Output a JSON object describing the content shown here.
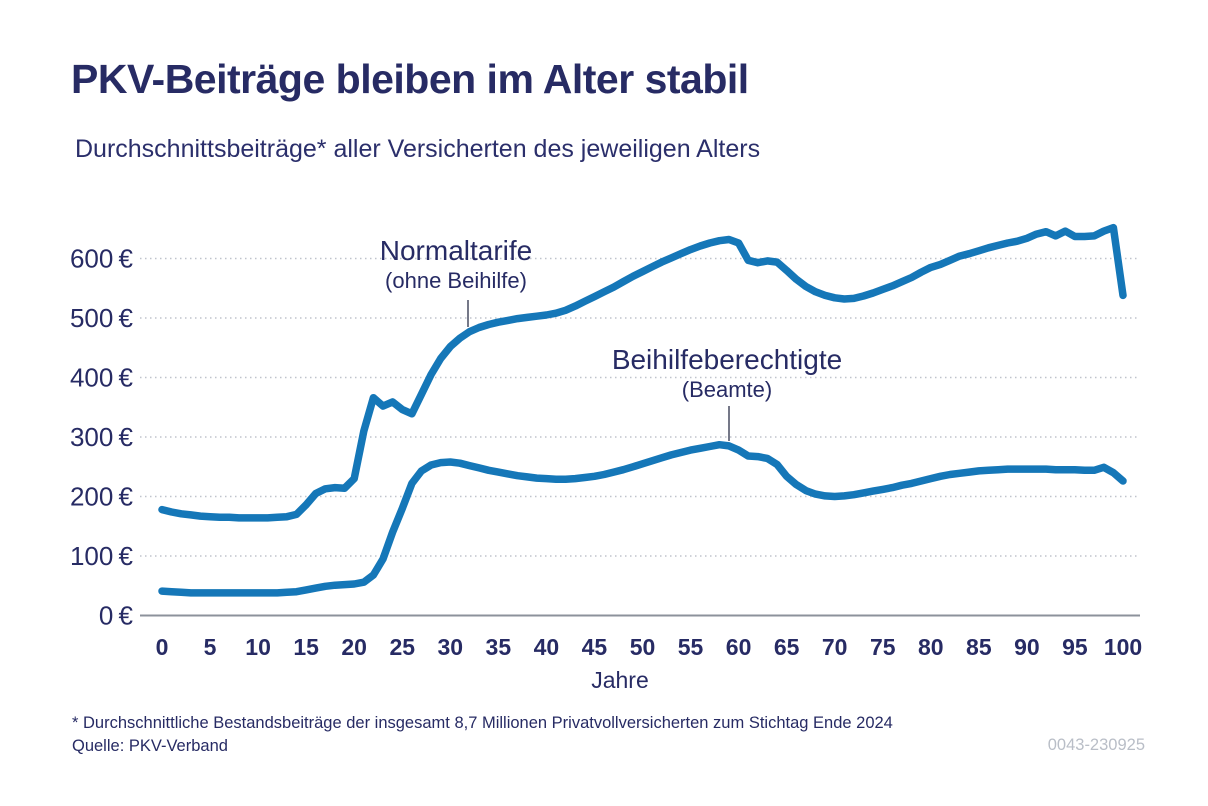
{
  "header": {
    "title": "PKV-Beiträge bleiben im Alter stabil",
    "subtitle": "Durchschnittsbeiträge* aller Versicherten des jeweiligen Alters"
  },
  "chart_data": {
    "type": "line",
    "xlabel": "Jahre",
    "x_ticks": [
      0,
      5,
      10,
      15,
      20,
      25,
      30,
      35,
      40,
      45,
      50,
      55,
      60,
      65,
      70,
      75,
      80,
      85,
      90,
      95,
      100
    ],
    "y_ticks": [
      0,
      100,
      200,
      300,
      400,
      500,
      600
    ],
    "y_tick_suffix": "€",
    "xlim": [
      0,
      100
    ],
    "ylim": [
      0,
      660
    ],
    "grid": "horizontal-dotted",
    "line_color": "#1577b8",
    "x_step": 1,
    "series": [
      {
        "name": "Normaltarife",
        "sublabel": "(ohne Beihilfe)",
        "values": [
          178,
          174,
          171,
          169,
          167,
          166,
          165,
          165,
          164,
          164,
          164,
          164,
          165,
          166,
          170,
          186,
          205,
          213,
          215,
          214,
          230,
          310,
          366,
          352,
          359,
          346,
          339,
          372,
          405,
          432,
          452,
          466,
          477,
          484,
          489,
          493,
          496,
          499,
          501,
          503,
          505,
          508,
          513,
          520,
          528,
          536,
          544,
          552,
          561,
          570,
          578,
          586,
          594,
          601,
          608,
          615,
          621,
          626,
          630,
          632,
          626,
          597,
          593,
          596,
          594,
          580,
          565,
          553,
          544,
          538,
          534,
          532,
          533,
          537,
          542,
          548,
          554,
          561,
          568,
          577,
          585,
          590,
          597,
          604,
          608,
          613,
          618,
          622,
          626,
          629,
          634,
          641,
          645,
          638,
          646,
          637,
          637,
          638,
          646,
          652,
          538
        ]
      },
      {
        "name": "Beihilfeberechtigte",
        "sublabel": "(Beamte)",
        "values": [
          41,
          40,
          39,
          38,
          38,
          38,
          38,
          38,
          38,
          38,
          38,
          38,
          38,
          39,
          40,
          43,
          46,
          49,
          51,
          52,
          53,
          56,
          68,
          95,
          140,
          180,
          222,
          243,
          253,
          257,
          258,
          256,
          252,
          248,
          244,
          241,
          238,
          235,
          233,
          231,
          230,
          229,
          229,
          230,
          232,
          234,
          237,
          241,
          245,
          250,
          255,
          260,
          265,
          270,
          274,
          278,
          281,
          284,
          287,
          285,
          278,
          268,
          267,
          264,
          254,
          234,
          220,
          210,
          204,
          201,
          200,
          201,
          203,
          206,
          209,
          212,
          215,
          219,
          222,
          226,
          230,
          234,
          237,
          239,
          241,
          243,
          244,
          245,
          246,
          246,
          246,
          246,
          246,
          245,
          245,
          245,
          244,
          244,
          249,
          240,
          226
        ]
      }
    ]
  },
  "footer": {
    "note": "* Durchschnittliche Bestandsbeiträge der insgesamt 8,7 Millionen Privatvollversicherten zum Stichtag Ende 2024",
    "source": "Quelle: PKV-Verband",
    "code": "0043-230925"
  },
  "colors": {
    "line_blue": "#1577b8",
    "text_navy": "#272b64",
    "grid_gray": "#bfc3cc",
    "code_gray": "#b9bec7"
  }
}
